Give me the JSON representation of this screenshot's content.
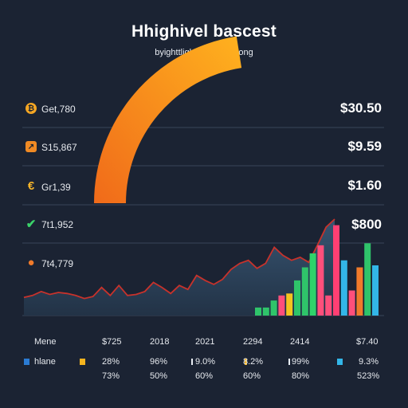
{
  "title": "Hhighivel bascest",
  "subtitle": "byighttlighinliggecthe.ong",
  "colors": {
    "background": "#1b2333",
    "gauge_start": "#f06a1a",
    "gauge_end": "#ffb21e",
    "line": "#c8322b",
    "area": "#2f4a63",
    "grid": "#3a4558"
  },
  "sidebar": {
    "rows": [
      {
        "icon": "bitcoin-icon",
        "label": "Get,780",
        "price": "$30.50"
      },
      {
        "icon": "orange-square-icon",
        "label": "S15,867",
        "price": "$9.59"
      },
      {
        "icon": "euro-icon",
        "label": "Gr1,39",
        "price": "$1.60"
      },
      {
        "icon": "check-icon",
        "label": "7t1,952",
        "price": "$800"
      },
      {
        "icon": "pin-icon",
        "label": "7t4,779",
        "price": ""
      }
    ]
  },
  "table": {
    "header": [
      "Mene",
      "$725",
      "2018",
      "2021",
      "2294",
      "2414",
      "$7.40"
    ],
    "rows": [
      {
        "label": "hlane",
        "values": [
          "28%",
          "96%",
          "9.0%",
          "8.2%",
          "99%",
          "9.3%"
        ]
      },
      {
        "label": "",
        "values": [
          "73%",
          "50%",
          "60%",
          "60%",
          "80%",
          "523%"
        ]
      }
    ],
    "legend_colors": [
      "#2b7bd3",
      "#f5b41e",
      "#e8edf3",
      "#f5b41e",
      "#e8edf3",
      "#33b6e8"
    ]
  },
  "chart_data": [
    {
      "type": "gauge",
      "value": 0.45,
      "colors": [
        "#f06a1a",
        "#ffb21e"
      ]
    },
    {
      "type": "area",
      "series": [
        {
          "values": [
            18,
            20,
            24,
            21,
            23,
            22,
            20,
            17,
            19,
            28,
            20,
            30,
            20,
            21,
            24,
            33,
            28,
            22,
            30,
            26,
            40,
            35,
            31,
            36,
            46,
            52,
            55,
            47,
            52,
            68,
            60,
            55,
            58,
            53,
            70,
            88,
            96
          ]
        }
      ]
    },
    {
      "type": "bar",
      "values": [
        8,
        8,
        15,
        20,
        22,
        35,
        48,
        62,
        70,
        20,
        90,
        55,
        25,
        48,
        72,
        50,
        74
      ],
      "colors": [
        "#2fc46a",
        "#2fc46a",
        "#2fc46a",
        "#ff4f7b",
        "#f5c41e",
        "#2fc46a",
        "#2fc46a",
        "#2fd36a",
        "#ff4f7b",
        "#ff4f7b",
        "#ff3f73",
        "#33b6e8",
        "#ff4f7b",
        "#f07a2a",
        "#2fc46a",
        "#33b6e8",
        "#2fd36a"
      ]
    }
  ]
}
